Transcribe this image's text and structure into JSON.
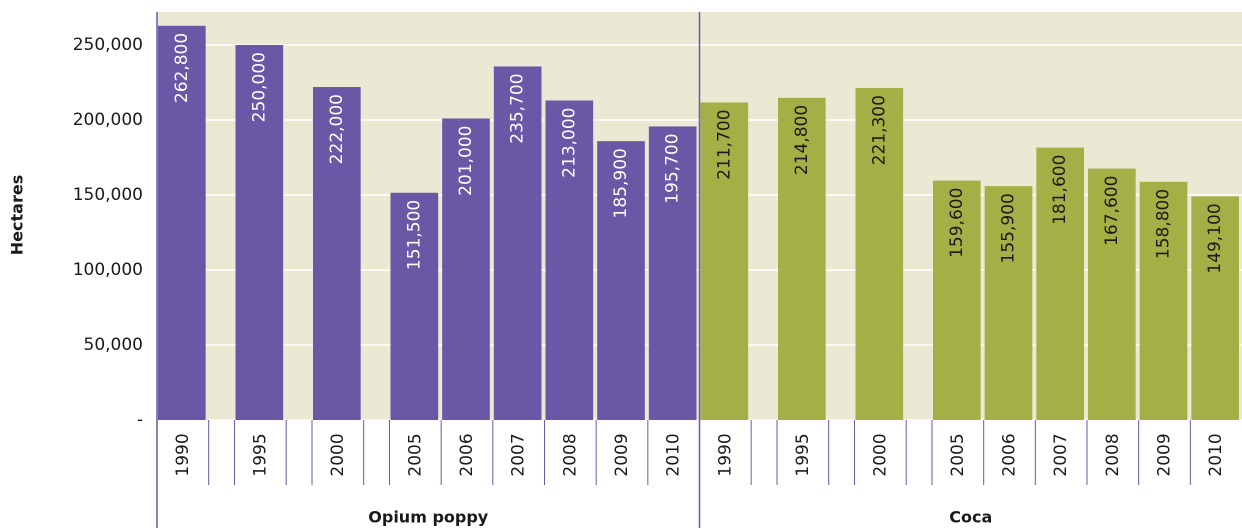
{
  "chart_data": {
    "type": "bar",
    "y_label": "Hectares",
    "ylim": [
      0,
      272000
    ],
    "yticks": [
      {
        "value": 0,
        "label": "-"
      },
      {
        "value": 50000,
        "label": "50,000"
      },
      {
        "value": 100000,
        "label": "100,000"
      },
      {
        "value": 150000,
        "label": "150,000"
      },
      {
        "value": 200000,
        "label": "200,000"
      },
      {
        "value": 250000,
        "label": "250,000"
      }
    ],
    "grid": true,
    "groups": [
      {
        "name": "Opium poppy",
        "color": "#6a58a6",
        "label_color": "#ffffff",
        "categories": [
          "1990",
          null,
          "1995",
          null,
          "2000",
          null,
          "2005",
          "2006",
          "2007",
          "2008",
          "2009",
          "2010"
        ],
        "values": [
          262800,
          null,
          250000,
          null,
          222000,
          null,
          151500,
          201000,
          235700,
          213000,
          185900,
          195700
        ],
        "value_labels": [
          "262,800",
          null,
          "250,000",
          null,
          "222,000",
          null,
          "151,500",
          "201,000",
          "235,700",
          "213,000",
          "185,900",
          "195,700"
        ]
      },
      {
        "name": "Coca",
        "color": "#a4b045",
        "label_color": "#1a1a1a",
        "categories": [
          "1990",
          null,
          "1995",
          null,
          "2000",
          null,
          "2005",
          "2006",
          "2007",
          "2008",
          "2009",
          "2010"
        ],
        "values": [
          211700,
          null,
          214800,
          null,
          221300,
          null,
          159600,
          155900,
          181600,
          167600,
          158800,
          149100
        ],
        "value_labels": [
          "211,700",
          null,
          "214,800",
          null,
          "221,300",
          null,
          "159,600",
          "155,900",
          "181,600",
          "167,600",
          "158,800",
          "149,100"
        ]
      }
    ]
  }
}
